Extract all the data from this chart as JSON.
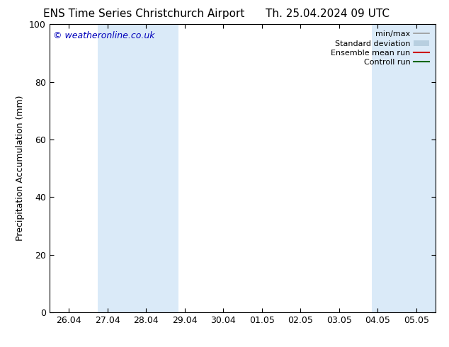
{
  "title_left": "ENS Time Series Christchurch Airport",
  "title_right": "Th. 25.04.2024 09 UTC",
  "ylabel": "Precipitation Accumulation (mm)",
  "watermark": "© weatheronline.co.uk",
  "ylim": [
    0,
    100
  ],
  "yticks": [
    0,
    20,
    40,
    60,
    80,
    100
  ],
  "xtick_labels": [
    "26.04",
    "27.04",
    "28.04",
    "29.04",
    "30.04",
    "01.05",
    "02.05",
    "03.05",
    "04.05",
    "05.05"
  ],
  "xtick_positions": [
    0,
    1,
    2,
    3,
    4,
    5,
    6,
    7,
    8,
    9
  ],
  "xlim": [
    -0.5,
    9.5
  ],
  "shaded_regions": [
    {
      "x_start": 0.75,
      "x_end": 2.85,
      "color": "#daeaf8"
    },
    {
      "x_start": 7.85,
      "x_end": 9.5,
      "color": "#daeaf8"
    }
  ],
  "legend_entries": [
    {
      "label": "min/max",
      "color": "#999999",
      "lw": 1.2,
      "ls": "-",
      "style": "minmax"
    },
    {
      "label": "Standard deviation",
      "color": "#b8cfe0",
      "lw": 5,
      "ls": "-",
      "style": "fill"
    },
    {
      "label": "Ensemble mean run",
      "color": "#cc0000",
      "lw": 1.5,
      "ls": "-",
      "style": "line"
    },
    {
      "label": "Controll run",
      "color": "#006600",
      "lw": 1.5,
      "ls": "-",
      "style": "line"
    }
  ],
  "background_color": "#ffffff",
  "plot_bg_color": "#ffffff",
  "watermark_color": "#0000bb",
  "title_fontsize": 11,
  "ylabel_fontsize": 9,
  "tick_fontsize": 9,
  "legend_fontsize": 8,
  "watermark_fontsize": 9
}
